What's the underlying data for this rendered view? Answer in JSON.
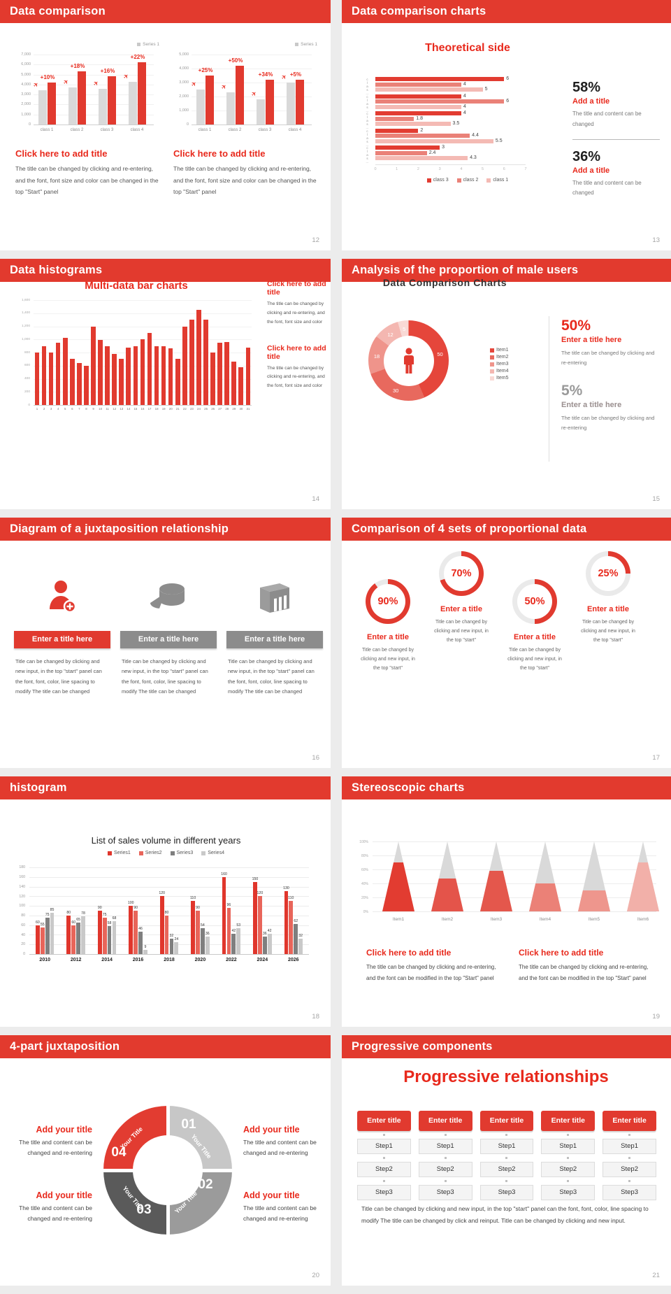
{
  "palette": {
    "accent_red": "#e13a2f",
    "header_red": "#e23a2e",
    "text_red": "#e8291c",
    "salmon": "#ea8178",
    "light_pink": "#f4bab4",
    "gray_bar": "#d9d9d9",
    "dark_gray": "#5a5a5a",
    "mid_gray": "#9b9b9b",
    "light_gray": "#c7c7c7",
    "page_bg": "#ececec"
  },
  "icons": {
    "paper_plane": "✈",
    "legend_square": "▪"
  },
  "slides": [
    {
      "title": "Data comparison",
      "page": "12",
      "blocks": [
        {
          "legend": "Series 1",
          "click_title": "Click here to add title",
          "body": "The title can be changed by clicking and re-entering, and the font, font size and color can be changed in the top \"Start\" panel"
        },
        {
          "legend": "Series 1",
          "click_title": "Click here to add title",
          "body": "The title can be changed by clicking and re-entering, and the font, font size and color can be changed in the top \"Start\" panel"
        }
      ]
    },
    {
      "title": "Data comparison charts",
      "page": "13",
      "chart_title": "Theoretical side",
      "stats": [
        {
          "pct": "58%",
          "title": "Add a title",
          "body": "The title and content can be changed"
        },
        {
          "pct": "36%",
          "title": "Add a title",
          "body": "The title and content can be changed"
        }
      ]
    },
    {
      "title": "Data histograms",
      "page": "14",
      "chart_title": "Multi-data bar charts",
      "side": [
        {
          "click_title": "Click here to add title",
          "body": "The title can be changed by clicking and re-entering, and the font, font size and color"
        },
        {
          "click_title": "Click here to add title",
          "body": "The title can be changed by clicking and re-entering, and the font, font size and color"
        }
      ]
    },
    {
      "title": "Analysis of the proportion of male users",
      "page": "15",
      "chart_title": "Data Comparison Charts",
      "stats": [
        {
          "pct": "50%",
          "title": "Enter a title here",
          "body": "The title can be changed by clicking and re-entering"
        },
        {
          "pct": "5%",
          "title": "Enter a title here",
          "body": "The title can be changed by clicking and re-entering"
        }
      ]
    },
    {
      "title": "Diagram of a juxtaposition relationship",
      "page": "16",
      "items": [
        {
          "icon": "person-add-icon",
          "banner": "Enter a title here",
          "body": "Title can be changed by clicking and new input, in the top \"start\" panel can the font, font, color, line spacing to modify The title can be changed"
        },
        {
          "icon": "pie-cake-icon",
          "banner": "Enter a title here",
          "body": "Title can be changed by clicking and new input, in the top \"start\" panel can the font, font, color, line spacing to modify The title can be changed"
        },
        {
          "icon": "building-icon",
          "banner": "Enter a title here",
          "body": "Title can be changed by clicking and new input, in the top \"start\" panel can the font, font, color, line spacing to modify The title can be changed"
        }
      ]
    },
    {
      "title": "Comparison of 4 sets of proportional data",
      "page": "17",
      "gauges": [
        {
          "title": "Enter a title",
          "body": "Title can be changed by clicking and new input, in the top \"start\""
        },
        {
          "title": "Enter a title",
          "body": "Title can be changed by clicking and new input, in the top \"start\""
        },
        {
          "title": "Enter a title",
          "body": "Title can be changed by clicking and new input, in the top \"start\""
        },
        {
          "title": "Enter a title",
          "body": "Title can be changed by clicking and new input, in the top \"start\""
        }
      ]
    },
    {
      "title": "histogram",
      "page": "18",
      "chart_title": "List of sales volume in different years"
    },
    {
      "title": "Stereoscopic charts",
      "page": "19",
      "side": [
        {
          "click_title": "Click here to add title",
          "body": "The title can be changed by clicking and re-entering, and the font can be modified in the top \"Start\" panel"
        },
        {
          "click_title": "Click here to add title",
          "body": "The title can be changed by clicking and re-entering, and the font can be modified in the top \"Start\" panel"
        }
      ]
    },
    {
      "title": "4-part juxtaposition",
      "page": "20",
      "ring": {
        "segments": [
          {
            "num": "01",
            "label": "Your Title",
            "color": "#c7c7c7"
          },
          {
            "num": "02",
            "label": "Your Title",
            "color": "#9b9b9b"
          },
          {
            "num": "03",
            "label": "Your Title",
            "color": "#5a5a5a"
          },
          {
            "num": "04",
            "label": "Your Title",
            "color": "#e23c31"
          }
        ]
      },
      "notes": [
        {
          "title": "Add your title",
          "body": "The title and content can be changed and re-entering"
        },
        {
          "title": "Add your title",
          "body": "The title and content can be changed and re-entering"
        },
        {
          "title": "Add your title",
          "body": "The title and content can be changed and re-entering"
        },
        {
          "title": "Add your title",
          "body": "The title and content can be changed and re-entering"
        }
      ]
    },
    {
      "title": "Progressive components",
      "page": "21",
      "big_title": "Progressive relationships",
      "columns": [
        {
          "button": "Enter title",
          "steps": [
            "Step1",
            "Step2",
            "Step3"
          ]
        },
        {
          "button": "Enter title",
          "steps": [
            "Step1",
            "Step2",
            "Step3"
          ]
        },
        {
          "button": "Enter title",
          "steps": [
            "Step1",
            "Step2",
            "Step3"
          ]
        },
        {
          "button": "Enter title",
          "steps": [
            "Step1",
            "Step2",
            "Step3"
          ]
        },
        {
          "button": "Enter title",
          "steps": [
            "Step1",
            "Step2",
            "Step3"
          ]
        }
      ],
      "footer": "Title can be changed by clicking and new input, in the top \"start\" panel can the font, font, color, line spacing to modify The title can be changed by click and reinput. Title can be changed by clicking and new input."
    }
  ],
  "chart_data": [
    {
      "id": "comparison-left",
      "type": "bar",
      "legend": "Series 1",
      "categories": [
        "class 1",
        "class 2",
        "class 3",
        "class 4"
      ],
      "series": [
        {
          "name": "base",
          "color": "#d9d9d9",
          "values": [
            3400,
            3700,
            3600,
            4300
          ]
        },
        {
          "name": "Series 1",
          "color": "#e13a2f",
          "values": [
            4200,
            5300,
            4800,
            6200
          ]
        }
      ],
      "labels": [
        "+10%",
        "+18%",
        "+16%",
        "+22%"
      ],
      "ylim": [
        0,
        7000
      ],
      "yticks": [
        "7,000",
        "6,000",
        "5,000",
        "4,000",
        "3,000",
        "2,000",
        "1,000",
        "0"
      ]
    },
    {
      "id": "comparison-right",
      "type": "bar",
      "legend": "Series 1",
      "categories": [
        "class 1",
        "class 2",
        "class 3",
        "class 4"
      ],
      "series": [
        {
          "name": "base",
          "color": "#d9d9d9",
          "values": [
            2500,
            2300,
            1800,
            3000
          ]
        },
        {
          "name": "Series 1",
          "color": "#e13a2f",
          "values": [
            3500,
            4200,
            3200,
            3200
          ]
        }
      ],
      "labels": [
        "+25%",
        "+50%",
        "+34%",
        "+5%"
      ],
      "ylim": [
        0,
        5000
      ],
      "yticks": [
        "5,000",
        "4,000",
        "3,000",
        "2,000",
        "1,000",
        "0"
      ]
    },
    {
      "id": "theoretical-side",
      "type": "bar",
      "orientation": "horizontal",
      "categories": [
        "clas…",
        "clas…",
        "clas…",
        "clas…",
        "clas…"
      ],
      "series": [
        {
          "name": "class 3",
          "color": "#e23c31",
          "values": [
            6,
            4,
            4,
            2,
            3
          ]
        },
        {
          "name": "class 2",
          "color": "#ea8178",
          "values": [
            4,
            6,
            1.8,
            4.4,
            2.4
          ]
        },
        {
          "name": "class 1",
          "color": "#f4bab4",
          "values": [
            5,
            4,
            3.5,
            5.5,
            4.3
          ]
        }
      ],
      "xlim": [
        0,
        7
      ],
      "xticks": [
        "0",
        "1",
        "2",
        "3",
        "4",
        "5",
        "6",
        "7"
      ]
    },
    {
      "id": "multi-data-bar",
      "type": "bar",
      "color": "#e13a2f",
      "ylim": [
        0,
        1600
      ],
      "yticks": [
        "1,600",
        "1,400",
        "1,200",
        "1,000",
        "800",
        "600",
        "400",
        "200",
        "0"
      ],
      "categories": [
        "1",
        "2",
        "3",
        "4",
        "5",
        "6",
        "7",
        "8",
        "9",
        "10",
        "11",
        "12",
        "13",
        "14",
        "15",
        "16",
        "17",
        "18",
        "19",
        "20",
        "21",
        "22",
        "23",
        "24",
        "25",
        "26",
        "27",
        "28",
        "29",
        "30",
        "31"
      ],
      "values": [
        800,
        900,
        800,
        950,
        1020,
        700,
        640,
        600,
        1200,
        990,
        900,
        780,
        700,
        880,
        900,
        1000,
        1100,
        900,
        900,
        860,
        700,
        1200,
        1300,
        1450,
        1300,
        800,
        950,
        960,
        660,
        580,
        870
      ]
    },
    {
      "id": "male-users-donut",
      "type": "pie",
      "labels": [
        "Item1",
        "Item2",
        "Item3",
        "Item4",
        "Item5"
      ],
      "values": [
        50,
        30,
        18,
        12,
        5
      ],
      "colors": [
        "#e5463b",
        "#e8695e",
        "#ef948b",
        "#f4b7b1",
        "#f9d9d5"
      ]
    },
    {
      "id": "proportional-gauges",
      "type": "pie",
      "values": [
        90,
        70,
        50,
        25
      ],
      "labels": [
        "90%",
        "70%",
        "50%",
        "25%"
      ],
      "color": "#e13a2f",
      "track": "#eaeaea"
    },
    {
      "id": "sales-volume",
      "type": "bar",
      "ylim": [
        0,
        180
      ],
      "yticks": [
        "180",
        "160",
        "140",
        "120",
        "100",
        "80",
        "60",
        "40",
        "20",
        "0"
      ],
      "categories": [
        "2010",
        "2012",
        "2014",
        "2016",
        "2018",
        "2020",
        "2022",
        "2024",
        "2026"
      ],
      "series": [
        {
          "name": "Series1",
          "color": "#e0362c",
          "values": [
            60,
            80,
            90,
            100,
            120,
            110,
            160,
            150,
            130
          ]
        },
        {
          "name": "Series2",
          "color": "#e8655a",
          "values": [
            55,
            60,
            75,
            90,
            80,
            90,
            96,
            120,
            110
          ]
        },
        {
          "name": "Series3",
          "color": "#7f7f7f",
          "values": [
            75,
            65,
            58,
            46,
            32,
            54,
            42,
            36,
            62
          ]
        },
        {
          "name": "Series4",
          "color": "#c9c9c9",
          "values": [
            85,
            78,
            68,
            9,
            24,
            36,
            53,
            42,
            32
          ]
        }
      ]
    },
    {
      "id": "stereoscopic-cones",
      "type": "bar",
      "unit": "%",
      "categories": [
        "Item1",
        "Item2",
        "Item3",
        "Item4",
        "Item5",
        "Item6"
      ],
      "values": [
        70,
        47,
        58,
        40,
        30,
        70
      ],
      "colors": [
        "#e23c31",
        "#e4544a",
        "#e4574c",
        "#eb8177",
        "#ee968d",
        "#f2b0a9"
      ],
      "cone_color": "#d9d9d9",
      "yticks": [
        "100%",
        "80%",
        "60%",
        "40%",
        "20%",
        "0%"
      ]
    }
  ]
}
